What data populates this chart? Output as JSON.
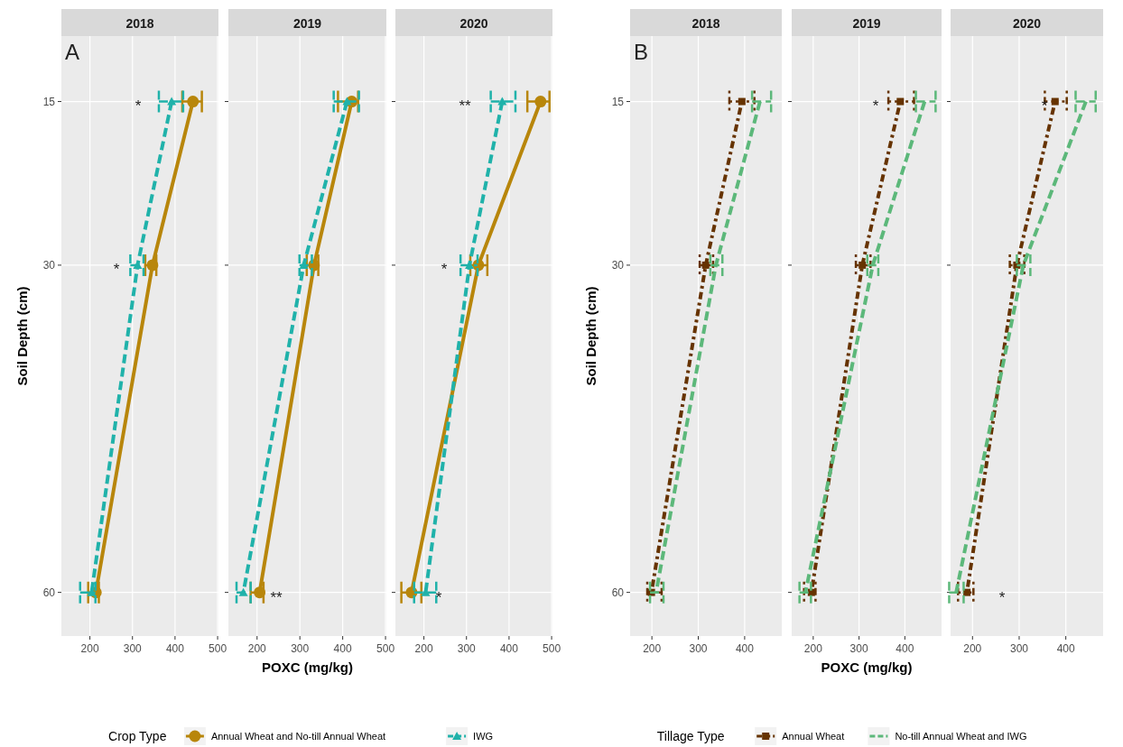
{
  "chart_data": [
    {
      "type": "line",
      "title": "2018",
      "ylabel": "Soil Depth (cm)",
      "xlim": [
        133,
        502
      ],
      "xticks": [
        200,
        300,
        400,
        500
      ],
      "ylim": [
        64,
        9
      ],
      "yticks": [
        15,
        30,
        60
      ],
      "grid": true,
      "annotations": [
        "A",
        "*",
        "*"
      ],
      "series": [
        {
          "color": "#b8860b",
          "marker": "circle",
          "line_style": "solid",
          "x": [
            442,
            347,
            214
          ],
          "values": [
            15,
            30,
            60
          ],
          "xerrors": [
            [
              417,
              463
            ],
            [
              330,
              356
            ],
            [
              196,
              221
            ]
          ]
        },
        {
          "color": "#20b2aa",
          "marker": "triangle",
          "line_style": "dashed",
          "x": [
            392,
            312,
            204
          ],
          "values": [
            15,
            30,
            60
          ],
          "xerrors": [
            [
              362,
              419
            ],
            [
              295,
              326
            ],
            [
              177,
              213
            ]
          ]
        }
      ]
    },
    {
      "type": "line",
      "title": "2019",
      "xlabel": "POXC (mg/kg)",
      "legend": "bottom",
      "legend_title": "Crop Type",
      "tick_labels": "x",
      "xlim": [
        133,
        502
      ],
      "xticks": [
        200,
        300,
        400,
        500
      ],
      "ylim": [
        64,
        9
      ],
      "yticks": [
        15,
        30,
        60
      ],
      "grid": true,
      "annotations": [
        "**"
      ],
      "series": [
        {
          "name": "Annual Wheat and No-till Annual Wheat",
          "color": "#b8860b",
          "marker": "circle",
          "line_style": "solid",
          "x": [
            421,
            333,
            206
          ],
          "values": [
            15,
            30,
            60
          ],
          "xerrors": [
            [
              389,
              436
            ],
            [
              316,
              343
            ],
            [
              185,
              215
            ]
          ]
        },
        {
          "name": "IWG",
          "color": "#20b2aa",
          "marker": "triangle",
          "line_style": "dashed",
          "x": [
            410,
            309,
            168
          ],
          "values": [
            15,
            30,
            60
          ],
          "xerrors": [
            [
              379,
              438
            ],
            [
              299,
              328
            ],
            [
              152,
              185
            ]
          ]
        }
      ]
    },
    {
      "type": "line",
      "title": "2020",
      "tick_labels": "x",
      "xlim": [
        133,
        502
      ],
      "xticks": [
        200,
        300,
        400,
        500
      ],
      "ylim": [
        64,
        9
      ],
      "yticks": [
        15,
        30,
        60
      ],
      "grid": true,
      "annotations": [
        "**",
        "*",
        "*"
      ],
      "series": [
        {
          "color": "#b8860b",
          "marker": "circle",
          "line_style": "solid",
          "x": [
            474,
            328,
            171
          ],
          "values": [
            15,
            30,
            60
          ],
          "xerrors": [
            [
              443,
              495
            ],
            [
              309,
              349
            ],
            [
              147,
              194
            ]
          ]
        },
        {
          "color": "#20b2aa",
          "marker": "triangle",
          "line_style": "dashed",
          "x": [
            384,
            307,
            204
          ],
          "values": [
            15,
            30,
            60
          ],
          "xerrors": [
            [
              357,
              415
            ],
            [
              286,
              326
            ],
            [
              177,
              229
            ]
          ]
        }
      ]
    },
    {
      "type": "line",
      "title": "2018",
      "ylabel": "Soil Depth (cm)",
      "xlim": [
        153,
        480
      ],
      "xticks": [
        200,
        300,
        400
      ],
      "ylim": [
        64,
        9
      ],
      "yticks": [
        15,
        30,
        60
      ],
      "grid": true,
      "annotations": [
        "B"
      ],
      "series": [
        {
          "color": "#663300",
          "marker": "square",
          "line_style": "dotted",
          "x": [
            394,
            316,
            199
          ],
          "values": [
            15,
            30,
            60
          ],
          "xerrors": [
            [
              367,
              421
            ],
            [
              303,
              332
            ],
            [
              190,
              221
            ]
          ]
        },
        {
          "color": "#5cb87a",
          "marker": "none",
          "line_style": "dashed",
          "x": [
            433,
            338,
            209
          ],
          "values": [
            15,
            30,
            60
          ],
          "xerrors": [
            [
              416,
              457
            ],
            [
              326,
              352
            ],
            [
              196,
              225
            ]
          ]
        }
      ]
    },
    {
      "type": "line",
      "title": "2019",
      "xlabel": "POXC (mg/kg)",
      "legend": "bottom",
      "legend_title": "Tillage Type",
      "tick_labels": "x",
      "xlim": [
        153,
        480
      ],
      "xticks": [
        200,
        300,
        400
      ],
      "ylim": [
        64,
        9
      ],
      "yticks": [
        15,
        30,
        60
      ],
      "grid": true,
      "annotations": [
        "*"
      ],
      "series": [
        {
          "name": "Annual Wheat",
          "color": "#663300",
          "marker": "square",
          "line_style": "dotted",
          "x": [
            390,
            307,
            196
          ],
          "values": [
            15,
            30,
            60
          ],
          "xerrors": [
            [
              364,
              420
            ],
            [
              293,
              325
            ],
            [
              180,
              205
            ]
          ]
        },
        {
          "name": "No-till Annual Wheat and IWG",
          "color": "#5cb87a",
          "marker": "none",
          "line_style": "dashed",
          "x": [
            443,
            330,
            183
          ],
          "values": [
            15,
            30,
            60
          ],
          "xerrors": [
            [
              424,
              467
            ],
            [
              318,
              342
            ],
            [
              170,
              195
            ]
          ]
        }
      ]
    },
    {
      "type": "line",
      "title": "2020",
      "tick_labels": "x",
      "xlim": [
        153,
        480
      ],
      "xticks": [
        200,
        300,
        400
      ],
      "ylim": [
        64,
        9
      ],
      "yticks": [
        15,
        30,
        60
      ],
      "grid": true,
      "annotations": [
        "*",
        "*"
      ],
      "series": [
        {
          "color": "#663300",
          "marker": "square",
          "line_style": "dotted",
          "x": [
            377,
            295,
            188
          ],
          "values": [
            15,
            30,
            60
          ],
          "xerrors": [
            [
              355,
              402
            ],
            [
              280,
              311
            ],
            [
              169,
              202
            ]
          ]
        },
        {
          "color": "#5cb87a",
          "marker": "none",
          "line_style": "dashed",
          "x": [
            443,
            309,
            165
          ],
          "values": [
            15,
            30,
            60
          ],
          "xerrors": [
            [
              421,
              464
            ],
            [
              295,
              324
            ],
            [
              150,
              181
            ]
          ]
        }
      ]
    }
  ]
}
